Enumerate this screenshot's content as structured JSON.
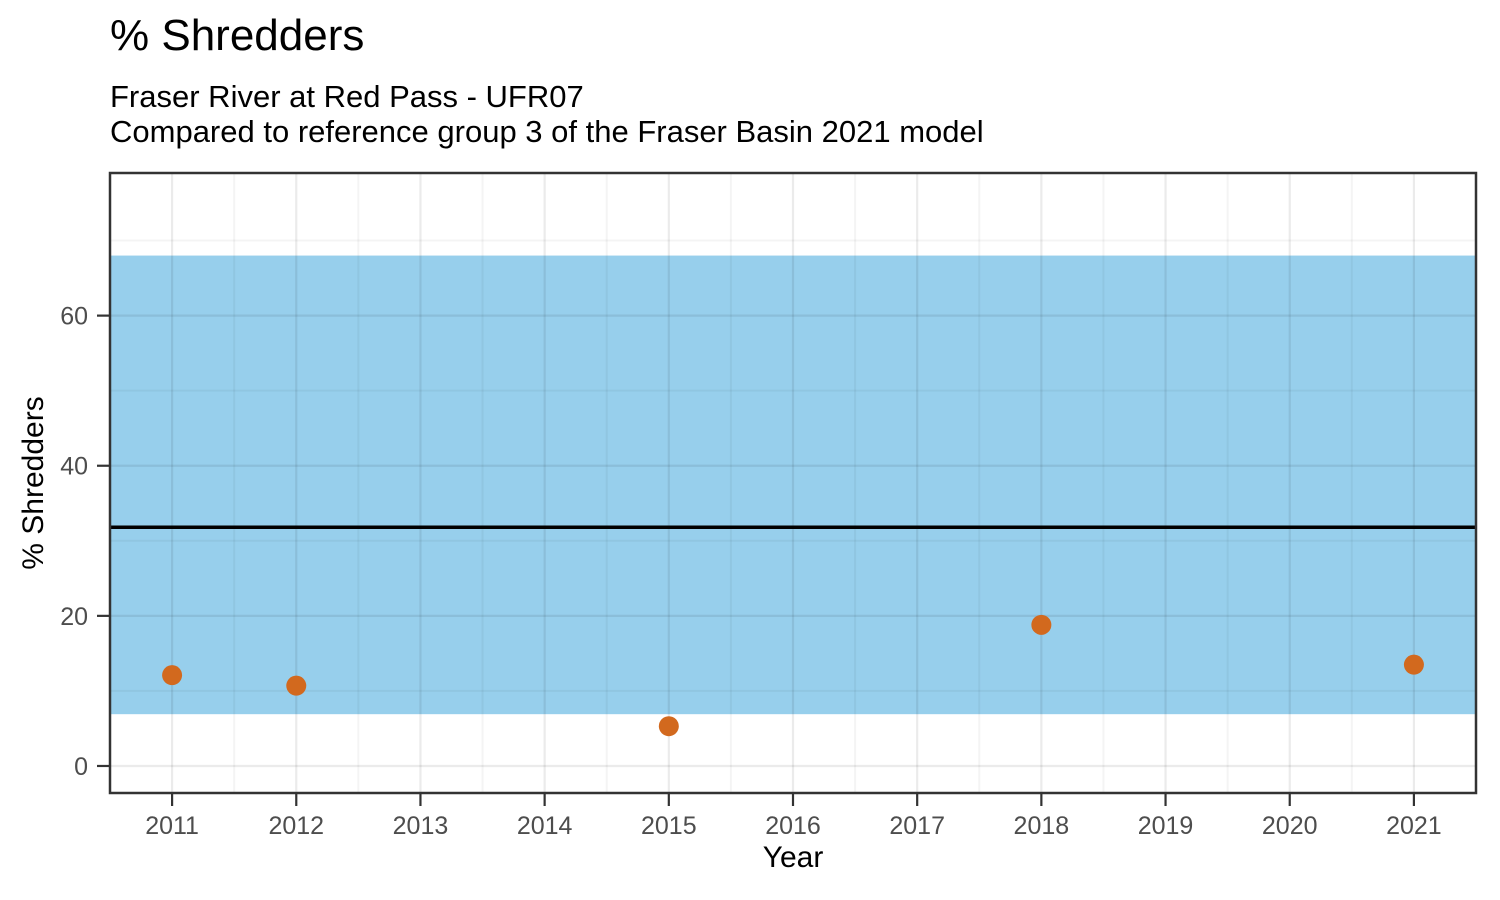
{
  "chart_data": {
    "type": "scatter",
    "title": "% Shredders",
    "subtitle": [
      "Fraser River at Red Pass - UFR07",
      "Compared to reference group 3 of the Fraser Basin 2021 model"
    ],
    "xlabel": "Year",
    "ylabel": "% Shredders",
    "x_ticks": [
      2011,
      2012,
      2013,
      2014,
      2015,
      2016,
      2017,
      2018,
      2019,
      2020,
      2021
    ],
    "y_ticks": [
      0,
      20,
      40,
      60
    ],
    "xlim": [
      2010.5,
      2021.5
    ],
    "ylim": [
      -3.6,
      79
    ],
    "grid": true,
    "legend": false,
    "series": [
      {
        "name": "% Shredders by year",
        "points": [
          [
            2011,
            12.1
          ],
          [
            2012,
            10.7
          ],
          [
            2015,
            5.3
          ],
          [
            2018,
            18.8
          ],
          [
            2021,
            13.5
          ]
        ]
      }
    ],
    "reference_band": {
      "low": 6.9,
      "high": 68.0
    },
    "reference_line": {
      "value": 31.8
    },
    "point_radius": 10,
    "colors": {
      "band": "#97CFEC",
      "point": "#D2691E",
      "reference_line": "#000000",
      "grid_major": "rgba(0,0,0,0.08)",
      "grid_minor": "rgba(0,0,0,0.045)",
      "panel_border": "#333333",
      "tick": "#333333",
      "tick_label": "#4D4D4D",
      "text": "#000000"
    }
  }
}
